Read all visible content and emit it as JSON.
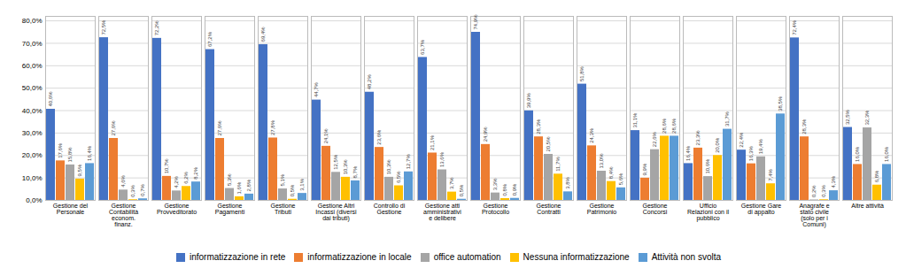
{
  "chart_data": {
    "type": "bar",
    "categories": [
      "Gestione del\nPersonale",
      "Gestione\nContabilità\neconom.\nfinanz.",
      "Gestione\nProvveditorato",
      "Gestione\nPagamenti",
      "Gestione\nTributi",
      "Gestione Altri\nIncassi (diversi\ndai tributi)",
      "Controllo di\nGestione",
      "Gestione atti\namministrativi\ne delibere",
      "Gestione\nProtocollo",
      "Gestione\nContratti",
      "Gestione\nPatrimonio",
      "Gestione\nConcorsi",
      "Ufficio\nRelazioni con il\npubblico",
      "Gestione Gare\ndi appalto",
      "Anagrafe e\nstato civile\n(solo per i\nComuni)",
      "Altre attività"
    ],
    "series": [
      {
        "name": "informatizzazione in rete",
        "color": "#4472C4",
        "values": [
          40.6,
          72.5,
          72.2,
          67.2,
          69.4,
          44.7,
          48.2,
          63.7,
          74.9,
          39.9,
          51.8,
          31.1,
          16.4,
          22.4,
          72.4,
          32.5
        ],
        "value_labels": [
          "40,6%",
          "72,5%",
          "72,2%",
          "67,2%",
          "69,4%",
          "44,7%",
          "48,2%",
          "63,7%",
          "74,9%",
          "39,9%",
          "51,8%",
          "31,1%",
          "16,4%",
          "22,4%",
          "72,4%",
          "32,5%"
        ]
      },
      {
        "name": "informatizzazione in locale",
        "color": "#ED7D31",
        "values": [
          17.6,
          27.6,
          10.7,
          27.6,
          27.8,
          24.1,
          23.6,
          21.1,
          24.9,
          28.3,
          24.3,
          9.9,
          23.3,
          16.3,
          28.3,
          16.0
        ],
        "value_labels": [
          "17,6%",
          "27,6%",
          "10,7%",
          "27,6%",
          "27,8%",
          "24,1%",
          "23,6%",
          "21,1%",
          "24,9%",
          "28,3%",
          "24,3%",
          "9,9%",
          "23,3%",
          "16,3%",
          "28,3%",
          "16,0%"
        ]
      },
      {
        "name": "office automation",
        "color": "#A5A5A5",
        "values": [
          15.8,
          4.6,
          4.2,
          5.3,
          5.1,
          12.5,
          10.3,
          13.6,
          3.3,
          20.5,
          13.0,
          22.6,
          10.6,
          19.4,
          0.2,
          32.3
        ],
        "value_labels": [
          "15,8%",
          "4,6%",
          "4,2%",
          "5,3%",
          "5,1%",
          "12,5%",
          "10,3%",
          "13,6%",
          "3,3%",
          "20,5%",
          "13,0%",
          "22,6%",
          "10,6%",
          "19,4%",
          "0,2%",
          "32,3%"
        ]
      },
      {
        "name": "Nessuna informatizzazione",
        "color": "#FFC000",
        "values": [
          9.5,
          0.3,
          6.2,
          1.6,
          0.5,
          10.3,
          6.5,
          3.7,
          0.8,
          11.7,
          8.4,
          28.6,
          20.0,
          7.4,
          0.3,
          6.8
        ],
        "value_labels": [
          "9,5%",
          "0,3%",
          "6,2%",
          "1,6%",
          "0,5%",
          "10,3%",
          "6,5%",
          "3,7%",
          "0,8%",
          "11,7%",
          "8,4%",
          "28,6%",
          "20,0%",
          "7,4%",
          "0,3%",
          "6,8%"
        ]
      },
      {
        "name": "Attività non svolta",
        "color": "#5B9BD5",
        "values": [
          16.4,
          0.7,
          8.2,
          2.8,
          3.1,
          8.7,
          12.7,
          0.5,
          0.9,
          3.8,
          5.6,
          28.6,
          31.7,
          38.5,
          4.3,
          16.0
        ],
        "value_labels": [
          "16,4%",
          "0,7%",
          "8,2%",
          "2,8%",
          "3,1%",
          "8,7%",
          "12,7%",
          "0,5%",
          "0,9%",
          "3,8%",
          "5,6%",
          "28,6%",
          "31,7%",
          "38,5%",
          "4,3%",
          "16,0%"
        ]
      }
    ],
    "ylim": [
      0,
      82
    ],
    "yticks": [
      {
        "value": 0,
        "label": "0,0%"
      },
      {
        "value": 10,
        "label": "10,0%"
      },
      {
        "value": 20,
        "label": "20,0%"
      },
      {
        "value": 30,
        "label": "30,0%"
      },
      {
        "value": 40,
        "label": "40,0%"
      },
      {
        "value": 50,
        "label": "50,0%"
      },
      {
        "value": 60,
        "label": "60,0%"
      },
      {
        "value": 70,
        "label": "70,0%"
      },
      {
        "value": 80,
        "label": "80,0%"
      }
    ],
    "grid": true,
    "legend": "bottom",
    "data_labels": true
  }
}
